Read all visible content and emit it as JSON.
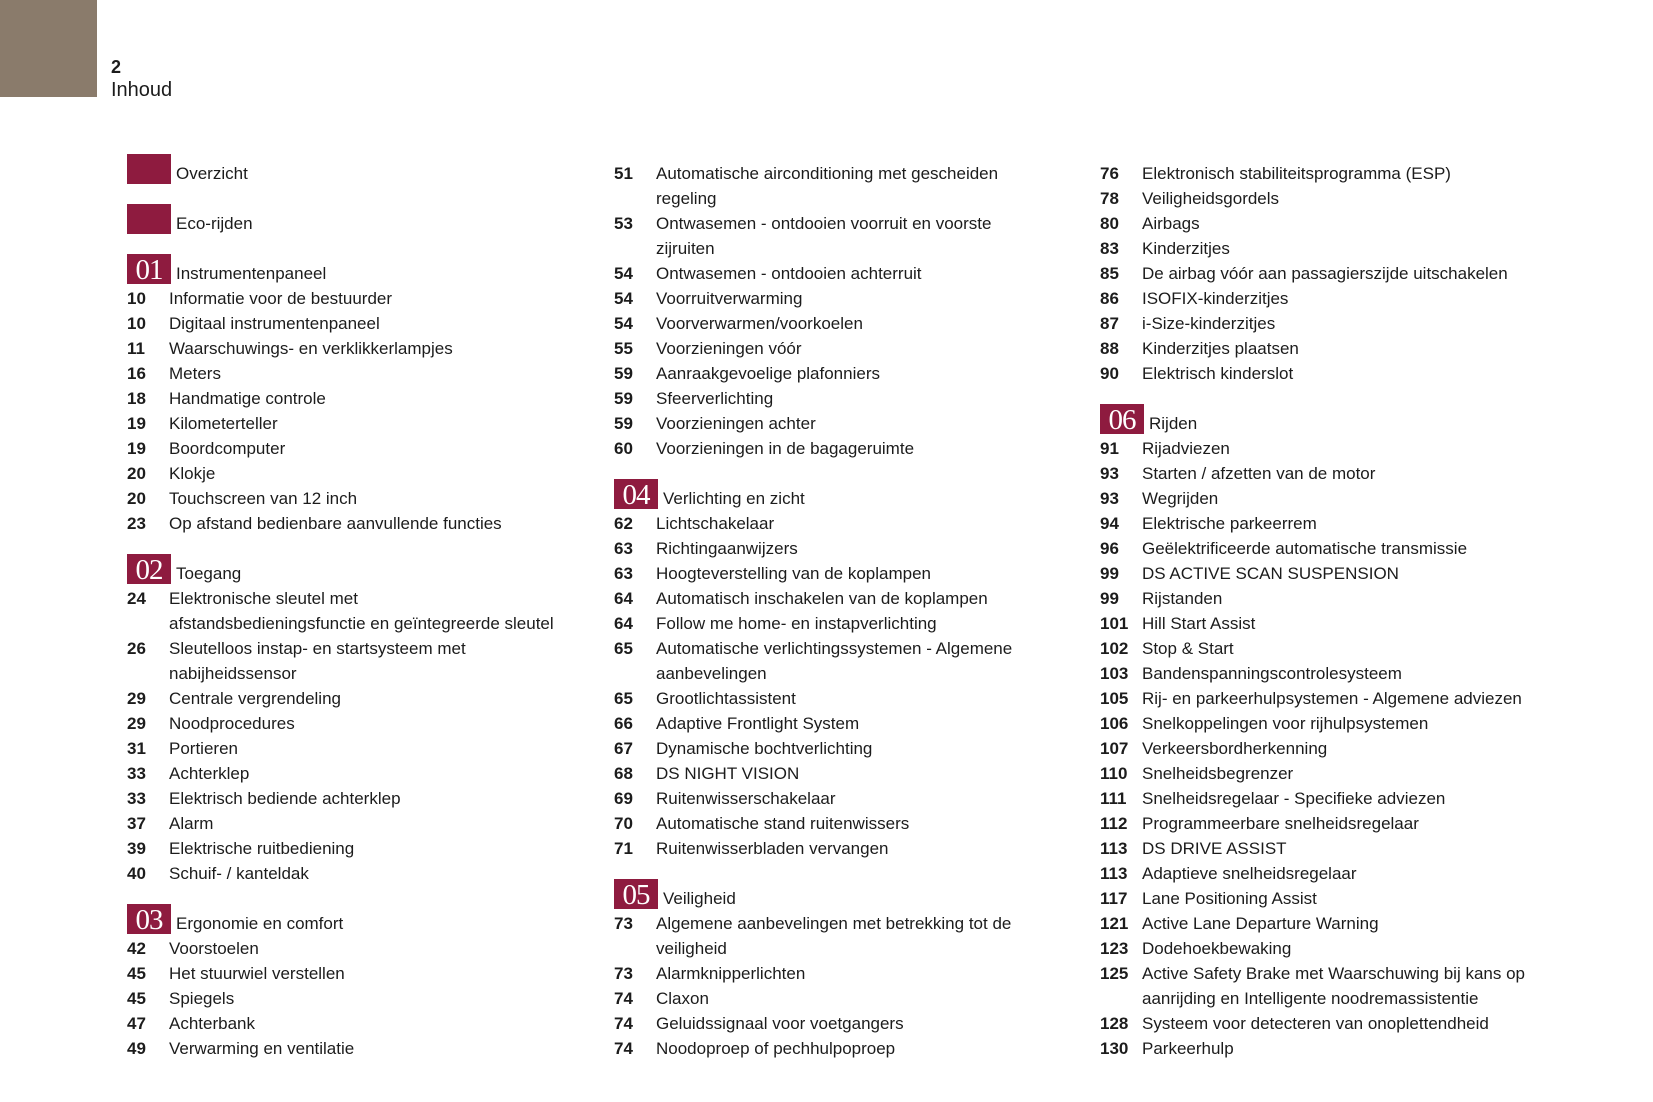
{
  "header": {
    "page_number": "2",
    "title": "Inhoud"
  },
  "colors": {
    "accent": "#8e1b3f",
    "corner": "#8a7b6b"
  },
  "columns": [
    [
      {
        "type": "section",
        "badge": "",
        "title": "Overzicht"
      },
      {
        "type": "section",
        "badge": "",
        "title": "Eco-rijden"
      },
      {
        "type": "section",
        "badge": "01",
        "title": "Instrumentenpaneel"
      },
      {
        "page": "10",
        "title": "Informatie voor de bestuurder"
      },
      {
        "page": "10",
        "title": "Digitaal instrumentenpaneel"
      },
      {
        "page": "11",
        "title": "Waarschuwings- en verklikkerlampjes"
      },
      {
        "page": "16",
        "title": "Meters"
      },
      {
        "page": "18",
        "title": "Handmatige controle"
      },
      {
        "page": "19",
        "title": "Kilometerteller"
      },
      {
        "page": "19",
        "title": "Boordcomputer"
      },
      {
        "page": "20",
        "title": "Klokje"
      },
      {
        "page": "20",
        "title": "Touchscreen van 12 inch"
      },
      {
        "page": "23",
        "title": "Op afstand bedienbare aanvullende functies"
      },
      {
        "type": "section",
        "badge": "02",
        "title": "Toegang"
      },
      {
        "page": "24",
        "title": "Elektronische sleutel met\nafstandsbedieningsfunctie en geïntegreerde sleutel"
      },
      {
        "page": "26",
        "title": "Sleutelloos instap- en startsysteem met\nnabijheidssensor"
      },
      {
        "page": "29",
        "title": "Centrale vergrendeling"
      },
      {
        "page": "29",
        "title": "Noodprocedures"
      },
      {
        "page": "31",
        "title": "Portieren"
      },
      {
        "page": "33",
        "title": "Achterklep"
      },
      {
        "page": "33",
        "title": "Elektrisch bediende achterklep"
      },
      {
        "page": "37",
        "title": "Alarm"
      },
      {
        "page": "39",
        "title": "Elektrische ruitbediening"
      },
      {
        "page": "40",
        "title": "Schuif- / kanteldak"
      },
      {
        "type": "section",
        "badge": "03",
        "title": "Ergonomie en comfort"
      },
      {
        "page": "42",
        "title": "Voorstoelen"
      },
      {
        "page": "45",
        "title": "Het stuurwiel verstellen"
      },
      {
        "page": "45",
        "title": "Spiegels"
      },
      {
        "page": "47",
        "title": "Achterbank"
      },
      {
        "page": "49",
        "title": "Verwarming en ventilatie"
      }
    ],
    [
      {
        "page": "51",
        "title": "Automatische airconditioning met gescheiden\nregeling"
      },
      {
        "page": "53",
        "title": "Ontwasemen - ontdooien voorruit en voorste\nzijruiten"
      },
      {
        "page": "54",
        "title": "Ontwasemen - ontdooien achterruit"
      },
      {
        "page": "54",
        "title": "Voorruitverwarming"
      },
      {
        "page": "54",
        "title": "Voorverwarmen/voorkoelen"
      },
      {
        "page": "55",
        "title": "Voorzieningen vóór"
      },
      {
        "page": "59",
        "title": "Aanraakgevoelige plafonniers"
      },
      {
        "page": "59",
        "title": "Sfeerverlichting"
      },
      {
        "page": "59",
        "title": "Voorzieningen achter"
      },
      {
        "page": "60",
        "title": "Voorzieningen in de bagageruimte"
      },
      {
        "type": "section",
        "badge": "04",
        "title": "Verlichting en zicht"
      },
      {
        "page": "62",
        "title": "Lichtschakelaar"
      },
      {
        "page": "63",
        "title": "Richtingaanwijzers"
      },
      {
        "page": "63",
        "title": "Hoogteverstelling van de koplampen"
      },
      {
        "page": "64",
        "title": "Automatisch inschakelen van de koplampen"
      },
      {
        "page": "64",
        "title": "Follow me home- en instapverlichting"
      },
      {
        "page": "65",
        "title": "Automatische verlichtingssystemen - Algemene\naanbevelingen"
      },
      {
        "page": "65",
        "title": "Grootlichtassistent"
      },
      {
        "page": "66",
        "title": "Adaptive Frontlight System"
      },
      {
        "page": "67",
        "title": "Dynamische bochtverlichting"
      },
      {
        "page": "68",
        "title": "DS NIGHT VISION"
      },
      {
        "page": "69",
        "title": "Ruitenwisserschakelaar"
      },
      {
        "page": "70",
        "title": "Automatische stand ruitenwissers"
      },
      {
        "page": "71",
        "title": "Ruitenwisserbladen vervangen"
      },
      {
        "type": "section",
        "badge": "05",
        "title": "Veiligheid"
      },
      {
        "page": "73",
        "title": "Algemene aanbevelingen met betrekking tot de\nveiligheid"
      },
      {
        "page": "73",
        "title": "Alarmknipperlichten"
      },
      {
        "page": "74",
        "title": "Claxon"
      },
      {
        "page": "74",
        "title": "Geluidssignaal voor voetgangers"
      },
      {
        "page": "74",
        "title": "Noodoproep of pechhulpoproep"
      }
    ],
    [
      {
        "page": "76",
        "title": "Elektronisch stabiliteitsprogramma (ESP)"
      },
      {
        "page": "78",
        "title": "Veiligheidsgordels"
      },
      {
        "page": "80",
        "title": "Airbags"
      },
      {
        "page": "83",
        "title": "Kinderzitjes"
      },
      {
        "page": "85",
        "title": "De airbag vóór aan passagierszijde uitschakelen"
      },
      {
        "page": "86",
        "title": "ISOFIX-kinderzitjes"
      },
      {
        "page": "87",
        "title": "i-Size-kinderzitjes"
      },
      {
        "page": "88",
        "title": "Kinderzitjes plaatsen"
      },
      {
        "page": "90",
        "title": "Elektrisch kinderslot"
      },
      {
        "type": "section",
        "badge": "06",
        "title": "Rijden"
      },
      {
        "page": "91",
        "title": "Rijadviezen"
      },
      {
        "page": "93",
        "title": "Starten / afzetten van de motor"
      },
      {
        "page": "93",
        "title": "Wegrijden"
      },
      {
        "page": "94",
        "title": "Elektrische parkeerrem"
      },
      {
        "page": "96",
        "title": "Geëlektrificeerde automatische transmissie"
      },
      {
        "page": "99",
        "title": "DS ACTIVE SCAN SUSPENSION"
      },
      {
        "page": "99",
        "title": "Rijstanden"
      },
      {
        "page": "101",
        "title": "Hill Start Assist"
      },
      {
        "page": "102",
        "title": "Stop & Start"
      },
      {
        "page": "103",
        "title": "Bandenspanningscontrolesysteem"
      },
      {
        "page": "105",
        "title": "Rij- en parkeerhulpsystemen - Algemene adviezen"
      },
      {
        "page": "106",
        "title": "Snelkoppelingen voor rijhulpsystemen"
      },
      {
        "page": "107",
        "title": "Verkeersbordherkenning"
      },
      {
        "page": "110",
        "title": "Snelheidsbegrenzer"
      },
      {
        "page": "111",
        "title": "Snelheidsregelaar - Specifieke adviezen"
      },
      {
        "page": "112",
        "title": "Programmeerbare snelheidsregelaar"
      },
      {
        "page": "113",
        "title": "DS DRIVE ASSIST"
      },
      {
        "page": "113",
        "title": "Adaptieve snelheidsregelaar"
      },
      {
        "page": "117",
        "title": "Lane Positioning Assist"
      },
      {
        "page": "121",
        "title": "Active Lane Departure Warning"
      },
      {
        "page": "123",
        "title": "Dodehoekbewaking"
      },
      {
        "page": "125",
        "title": "Active Safety Brake met Waarschuwing bij kans op\naanrijding en Intelligente noodremassistentie"
      },
      {
        "page": "128",
        "title": "Systeem voor detecteren van onoplettendheid"
      },
      {
        "page": "130",
        "title": "Parkeerhulp"
      }
    ]
  ]
}
